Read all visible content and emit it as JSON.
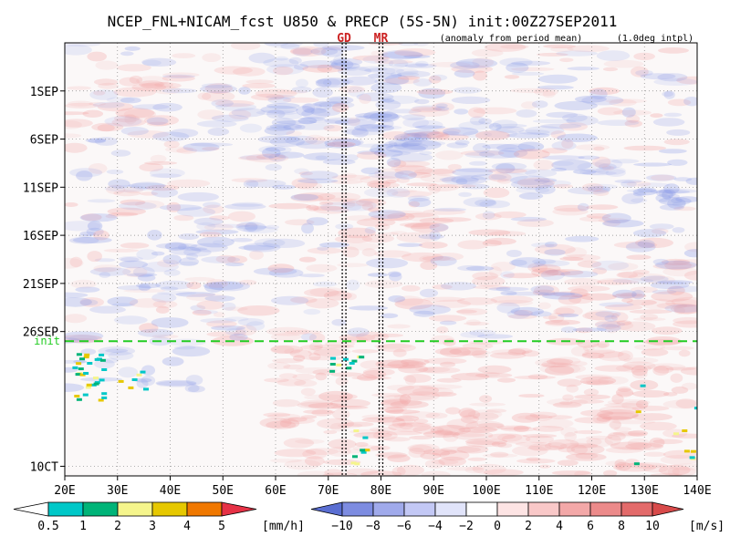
{
  "chart_data": {
    "type": "heatmap",
    "title": "NCEP_FNL+NICAM_fcst U850 & PRECP (5S-5N) init:00Z27SEP2011",
    "subtitle": "(anomaly from period mean)",
    "interp_note": "(1.0deg intpl)",
    "x_ticks": [
      "20E",
      "30E",
      "40E",
      "50E",
      "60E",
      "70E",
      "80E",
      "90E",
      "100E",
      "110E",
      "120E",
      "130E",
      "140E"
    ],
    "x_tick_values": [
      20,
      30,
      40,
      50,
      60,
      70,
      80,
      90,
      100,
      110,
      120,
      130,
      140
    ],
    "xlim": [
      20,
      140
    ],
    "y_ticks": [
      "1SEP",
      "6SEP",
      "11SEP",
      "16SEP",
      "21SEP",
      "26SEP",
      "10CT"
    ],
    "y_tick_days": [
      5,
      10,
      15,
      20,
      25,
      30,
      44
    ],
    "ylim_days_from_27AUG": [
      0,
      45
    ],
    "init": {
      "label": "init",
      "day": 31,
      "color": "#22cc22"
    },
    "vertical_markers": [
      {
        "label": "GD",
        "lon": 73,
        "color": "#cc2222"
      },
      {
        "label": "MR",
        "lon": 80,
        "color": "#cc2222"
      }
    ],
    "precip_colorbar": {
      "unit": "[mm/h]",
      "labels": [
        "0.5",
        "1",
        "2",
        "3",
        "4",
        "5"
      ],
      "colors": [
        "#ffffff",
        "#00c8c8",
        "#00b478",
        "#f5f58c",
        "#e6c800",
        "#f07800",
        "#e63246"
      ]
    },
    "wind_colorbar": {
      "unit": "[m/s]",
      "labels": [
        "−10",
        "−8",
        "−6",
        "−4",
        "−2",
        "0",
        "2",
        "4",
        "6",
        "8",
        "10"
      ],
      "colors": [
        "#5a6ed2",
        "#7d8ce1",
        "#a0aaeb",
        "#c3c8f5",
        "#e1e4fa",
        "#ffffff",
        "#fde4e4",
        "#f9c8c8",
        "#f3a8a8",
        "#ec8a8a",
        "#e36a6a",
        "#d84a4a"
      ]
    },
    "grid": true,
    "background_field_colors": {
      "negative": "#8a9ae8",
      "positive": "#f2a0a0"
    }
  }
}
